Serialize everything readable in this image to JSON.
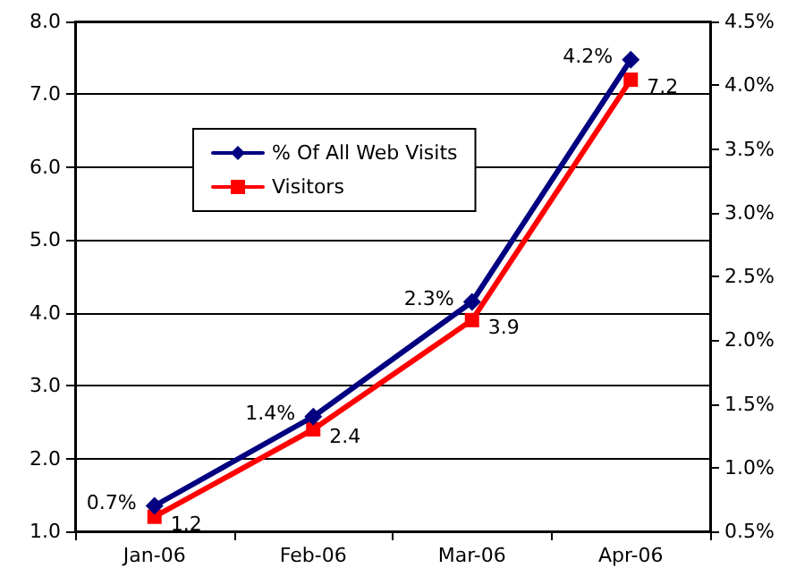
{
  "chart_data": {
    "type": "line",
    "categories": [
      "Jan-06",
      "Feb-06",
      "Mar-06",
      "Apr-06"
    ],
    "series": [
      {
        "name": "% Of All Web Visits",
        "color": "#000080",
        "values": [
          0.7,
          1.4,
          2.3,
          4.2
        ],
        "axis": "y2",
        "marker": "diamond",
        "value_labels": [
          "0.7%",
          "1.4%",
          "2.3%",
          "4.2%"
        ]
      },
      {
        "name": "Visitors",
        "color": "#ff0000",
        "values": [
          1.2,
          2.4,
          3.9,
          7.2
        ],
        "marker": "square",
        "value_labels": [
          "1.2",
          "2.4",
          "3.9",
          "7.2"
        ]
      }
    ],
    "ylim": [
      1,
      8
    ],
    "yticks": [
      {
        "value": 1,
        "label": "1.0"
      },
      {
        "value": 2,
        "label": "2.0"
      },
      {
        "value": 3,
        "label": "3.0"
      },
      {
        "value": 4,
        "label": "4.0"
      },
      {
        "value": 5,
        "label": "5.0"
      },
      {
        "value": 6,
        "label": "6.0"
      },
      {
        "value": 7,
        "label": "7.0"
      },
      {
        "value": 8,
        "label": "8.0"
      }
    ],
    "y2lim": [
      0.5,
      4.5
    ],
    "y2ticks": [
      {
        "value": 0.5,
        "label": "0.5%"
      },
      {
        "value": 1,
        "label": "1.0%"
      },
      {
        "value": 1.5,
        "label": "1.5%"
      },
      {
        "value": 2,
        "label": "2.0%"
      },
      {
        "value": 2.5,
        "label": "2.5%"
      },
      {
        "value": 3,
        "label": "3.0%"
      },
      {
        "value": 3.5,
        "label": "3.5%"
      },
      {
        "value": 4,
        "label": "4.0%"
      },
      {
        "value": 4.5,
        "label": "4.5%"
      }
    ],
    "grid": "y",
    "legend": "top left",
    "line_style": "solid"
  }
}
